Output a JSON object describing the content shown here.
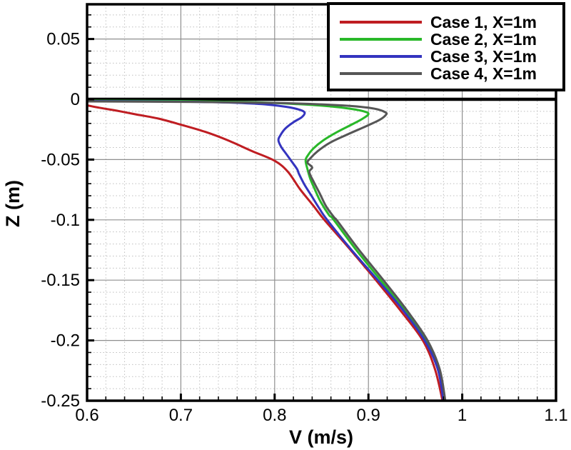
{
  "figure": {
    "background": "#ffffff"
  },
  "legend": {
    "position": "top-right",
    "entries": [
      {
        "label": "Case 1, X=1m",
        "color": "#bf1d22"
      },
      {
        "label": "Case 2, X=1m",
        "color": "#29b829"
      },
      {
        "label": "Case 3, X=1m",
        "color": "#3434bf"
      },
      {
        "label": "Case 4, X=1m",
        "color": "#565656"
      }
    ]
  },
  "chart_data": {
    "type": "line",
    "title": "",
    "xlabel": "V (m/s)",
    "ylabel": "Z (m)",
    "xlim": [
      0.6,
      1.1
    ],
    "ylim": [
      -0.25,
      0.0788
    ],
    "grid": true,
    "legend_position": "top-right",
    "surface_line_z": 0,
    "x_major_ticks": [
      {
        "value": 0.6,
        "label": "0.6"
      },
      {
        "value": 0.7,
        "label": "0.7"
      },
      {
        "value": 0.8,
        "label": "0.8"
      },
      {
        "value": 0.9,
        "label": "0.9"
      },
      {
        "value": 1.0,
        "label": "1"
      },
      {
        "value": 1.1,
        "label": "1.1"
      }
    ],
    "y_major_ticks": [
      {
        "value": 0.05,
        "label": "0.05"
      },
      {
        "value": 0.0,
        "label": "0"
      },
      {
        "value": -0.05,
        "label": "-0.05"
      },
      {
        "value": -0.1,
        "label": "-0.1"
      },
      {
        "value": -0.15,
        "label": "-0.15"
      },
      {
        "value": -0.2,
        "label": "-0.2"
      },
      {
        "value": -0.25,
        "label": "-0.25"
      }
    ],
    "x_minor_step": 0.02,
    "y_minor_step": 0.01,
    "colors": {
      "major_grid": "#8f8f8f",
      "minor_grid": "#bfbfbf",
      "axis": "#000000",
      "surface_line": "#000000"
    },
    "series": [
      {
        "name": "Case 1, X=1m",
        "color": "#bf1d22",
        "points": [
          [
            0.6,
            -0.005
          ],
          [
            0.613,
            -0.007
          ],
          [
            0.632,
            -0.0095
          ],
          [
            0.652,
            -0.0125
          ],
          [
            0.676,
            -0.016
          ],
          [
            0.7,
            -0.021
          ],
          [
            0.726,
            -0.027
          ],
          [
            0.75,
            -0.034
          ],
          [
            0.776,
            -0.043
          ],
          [
            0.8,
            -0.051
          ],
          [
            0.814,
            -0.06
          ],
          [
            0.827,
            -0.0745
          ],
          [
            0.841,
            -0.088
          ],
          [
            0.853,
            -0.1
          ],
          [
            0.881,
            -0.125
          ],
          [
            0.908,
            -0.15
          ],
          [
            0.934,
            -0.175
          ],
          [
            0.958,
            -0.2
          ],
          [
            0.971,
            -0.224
          ],
          [
            0.979,
            -0.25
          ]
        ]
      },
      {
        "name": "Case 2, X=1m",
        "color": "#29b829",
        "points": [
          [
            0.6,
            -0.0012
          ],
          [
            0.7,
            -0.0015
          ],
          [
            0.78,
            -0.0025
          ],
          [
            0.825,
            -0.004
          ],
          [
            0.858,
            -0.0058
          ],
          [
            0.882,
            -0.008
          ],
          [
            0.895,
            -0.01
          ],
          [
            0.9,
            -0.0122
          ],
          [
            0.894,
            -0.016
          ],
          [
            0.882,
            -0.021
          ],
          [
            0.867,
            -0.027
          ],
          [
            0.852,
            -0.034
          ],
          [
            0.841,
            -0.041
          ],
          [
            0.835,
            -0.047
          ],
          [
            0.833,
            -0.051
          ],
          [
            0.835,
            -0.058
          ],
          [
            0.838,
            -0.066
          ],
          [
            0.843,
            -0.075
          ],
          [
            0.849,
            -0.085
          ],
          [
            0.858,
            -0.096
          ],
          [
            0.863,
            -0.1
          ],
          [
            0.887,
            -0.125
          ],
          [
            0.913,
            -0.15
          ],
          [
            0.939,
            -0.175
          ],
          [
            0.962,
            -0.2
          ],
          [
            0.975,
            -0.224
          ],
          [
            0.981,
            -0.25
          ]
        ]
      },
      {
        "name": "Case 3, X=1m",
        "color": "#3434bf",
        "points": [
          [
            0.6,
            -0.0015
          ],
          [
            0.7,
            -0.002
          ],
          [
            0.755,
            -0.0028
          ],
          [
            0.79,
            -0.0042
          ],
          [
            0.812,
            -0.0062
          ],
          [
            0.826,
            -0.0085
          ],
          [
            0.832,
            -0.011
          ],
          [
            0.829,
            -0.0148
          ],
          [
            0.82,
            -0.019
          ],
          [
            0.811,
            -0.0245
          ],
          [
            0.806,
            -0.03
          ],
          [
            0.804,
            -0.034
          ],
          [
            0.807,
            -0.0395
          ],
          [
            0.813,
            -0.046
          ],
          [
            0.819,
            -0.0525
          ],
          [
            0.824,
            -0.058
          ],
          [
            0.826,
            -0.062
          ],
          [
            0.832,
            -0.071
          ],
          [
            0.84,
            -0.081
          ],
          [
            0.848,
            -0.091
          ],
          [
            0.856,
            -0.1
          ],
          [
            0.882,
            -0.125
          ],
          [
            0.91,
            -0.15
          ],
          [
            0.937,
            -0.175
          ],
          [
            0.96,
            -0.2
          ],
          [
            0.974,
            -0.224
          ],
          [
            0.98,
            -0.25
          ]
        ]
      },
      {
        "name": "Case 4, X=1m",
        "color": "#565656",
        "points": [
          [
            0.6,
            -0.0018
          ],
          [
            0.72,
            -0.0022
          ],
          [
            0.8,
            -0.003
          ],
          [
            0.85,
            -0.0042
          ],
          [
            0.88,
            -0.0055
          ],
          [
            0.9,
            -0.007
          ],
          [
            0.912,
            -0.0088
          ],
          [
            0.918,
            -0.0108
          ],
          [
            0.919,
            -0.0125
          ],
          [
            0.912,
            -0.017
          ],
          [
            0.897,
            -0.0225
          ],
          [
            0.878,
            -0.029
          ],
          [
            0.859,
            -0.036
          ],
          [
            0.846,
            -0.043
          ],
          [
            0.838,
            -0.049
          ],
          [
            0.835,
            -0.0525
          ],
          [
            0.84,
            -0.0565
          ],
          [
            0.837,
            -0.0605
          ],
          [
            0.842,
            -0.069
          ],
          [
            0.848,
            -0.078
          ],
          [
            0.855,
            -0.089
          ],
          [
            0.864,
            -0.0985
          ],
          [
            0.867,
            -0.101
          ],
          [
            0.89,
            -0.125
          ],
          [
            0.916,
            -0.15
          ],
          [
            0.941,
            -0.175
          ],
          [
            0.963,
            -0.2
          ],
          [
            0.976,
            -0.224
          ],
          [
            0.982,
            -0.25
          ]
        ]
      }
    ]
  }
}
